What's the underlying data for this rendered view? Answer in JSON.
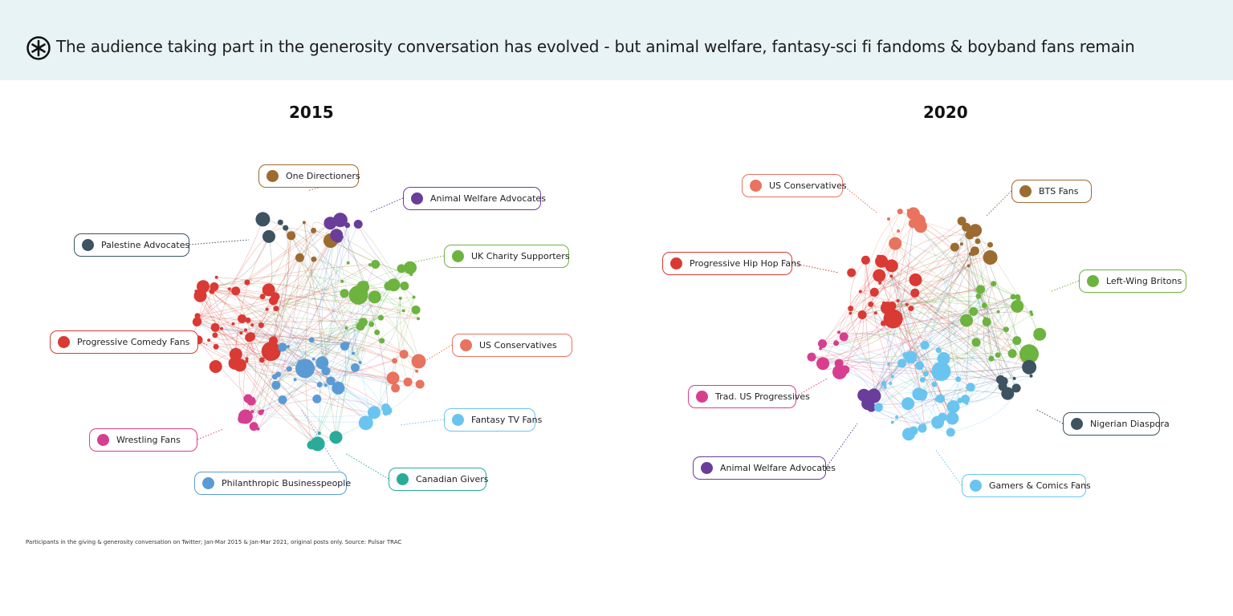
{
  "header": {
    "title": "The audience taking part in the generosity conversation has evolved - but animal welfare, fantasy-sci fi fandoms & boyband fans remain",
    "logo_icon": "asterisk-circle-icon"
  },
  "footnote": "Participants in the giving & generosity conversation on Twitter; Jan-Mar 2015 & Jan-Mar 2021, original posts only. Source: Pulsar TRAC",
  "panels": [
    {
      "year": "2015",
      "clusters": [
        {
          "id": "one-directioners",
          "label": "One Directioners",
          "color": "#9c6b30",
          "nodes": 6
        },
        {
          "id": "animal-welfare-advocates",
          "label": "Animal Welfare Advocates",
          "color": "#6a3d9a",
          "nodes": 7
        },
        {
          "id": "palestine-advocates",
          "label": "Palestine Advocates",
          "color": "#3d5361",
          "nodes": 5
        },
        {
          "id": "uk-charity-supporters",
          "label": "UK Charity Supporters",
          "color": "#6db33f",
          "nodes": 28
        },
        {
          "id": "progressive-comedy-fans",
          "label": "Progressive Comedy Fans",
          "color": "#d93a34",
          "nodes": 45
        },
        {
          "id": "us-conservatives",
          "label": "US Conservatives",
          "color": "#e8735f",
          "nodes": 8
        },
        {
          "id": "fantasy-tv-fans",
          "label": "Fantasy TV Fans",
          "color": "#6ac4f0",
          "nodes": 6
        },
        {
          "id": "wrestling-fans",
          "label": "Wrestling Fans",
          "color": "#d63f8f",
          "nodes": 9
        },
        {
          "id": "philanthropic-businesspeople",
          "label": "Philanthropic Businesspeople",
          "color": "#5b9bd5",
          "nodes": 26
        },
        {
          "id": "canadian-givers",
          "label": "Canadian Givers",
          "color": "#2aab9a",
          "nodes": 5
        }
      ]
    },
    {
      "year": "2020",
      "clusters": [
        {
          "id": "us-conservatives",
          "label": "US Conservatives",
          "color": "#e8735f",
          "nodes": 10
        },
        {
          "id": "bts-fans",
          "label": "BTS Fans",
          "color": "#9c6b30",
          "nodes": 14
        },
        {
          "id": "progressive-hip-hop-fans",
          "label": "Progressive Hip Hop Fans",
          "color": "#d93a34",
          "nodes": 30
        },
        {
          "id": "left-wing-britons",
          "label": "Left-Wing Britons",
          "color": "#6db33f",
          "nodes": 24
        },
        {
          "id": "trad-us-progressives",
          "label": "Trad. US Progressives",
          "color": "#d63f8f",
          "nodes": 10
        },
        {
          "id": "nigerian-diaspora",
          "label": "Nigerian Diaspora",
          "color": "#3d5361",
          "nodes": 10
        },
        {
          "id": "animal-welfare-advocates",
          "label": "Animal Welfare Advocates",
          "color": "#6a3d9a",
          "nodes": 5
        },
        {
          "id": "gamers-comics-fans",
          "label": "Gamers & Comics Fans",
          "color": "#6ac4f0",
          "nodes": 40
        }
      ]
    }
  ]
}
